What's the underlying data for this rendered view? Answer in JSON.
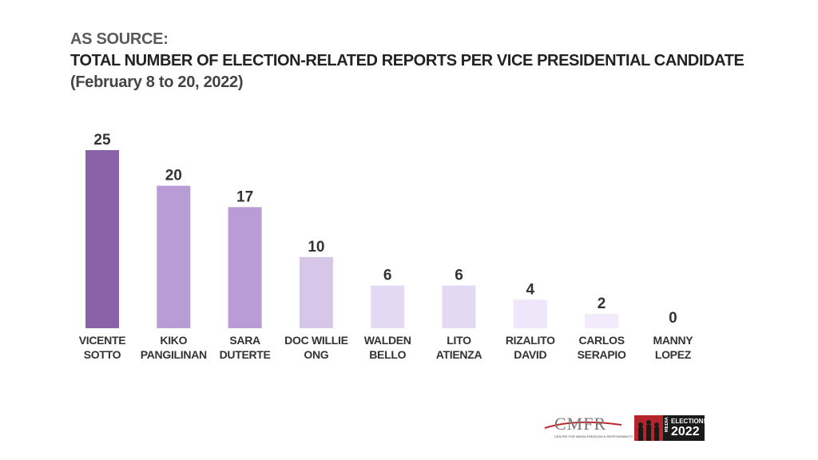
{
  "header": {
    "line1": "AS SOURCE:",
    "line2": "TOTAL NUMBER OF  ELECTION-RELATED REPORTS PER VICE PRESIDENTIAL CANDIDATE",
    "line3": "(February 8 to 20, 2022)"
  },
  "chart_data": {
    "type": "bar",
    "title": "TOTAL NUMBER OF  ELECTION-RELATED REPORTS PER VICE PRESIDENTIAL CANDIDATE",
    "subtitle": "(February 8 to 20, 2022)",
    "categories": [
      [
        "VICENTE",
        "SOTTO"
      ],
      [
        "KIKO",
        "PANGILINAN"
      ],
      [
        "SARA",
        "DUTERTE"
      ],
      [
        "DOC WILLIE",
        "ONG"
      ],
      [
        "WALDEN",
        "BELLO"
      ],
      [
        "LITO",
        "ATIENZA"
      ],
      [
        "RIZALITO",
        "DAVID"
      ],
      [
        "CARLOS",
        "SERAPIO"
      ],
      [
        "MANNY",
        "LOPEZ"
      ]
    ],
    "values": [
      25,
      20,
      17,
      10,
      6,
      6,
      4,
      2,
      0
    ],
    "colors": [
      "#8a62a8",
      "#b99bd6",
      "#b99bd6",
      "#d6c6e8",
      "#e4d9f3",
      "#e4d9f3",
      "#efe6fb",
      "#f1ebfb",
      "#f4effb"
    ],
    "ylim": [
      0,
      25
    ],
    "grid": false,
    "xlabel": "",
    "ylabel": ""
  },
  "logos": {
    "cmfr": "CMFR",
    "cmfr_sub": "CENTER FOR MEDIA FREEDOM & RESPONSIBILITY",
    "elections_media": "MEDIA",
    "elections_top": "ELECTIONS",
    "elections_year": "2022"
  }
}
